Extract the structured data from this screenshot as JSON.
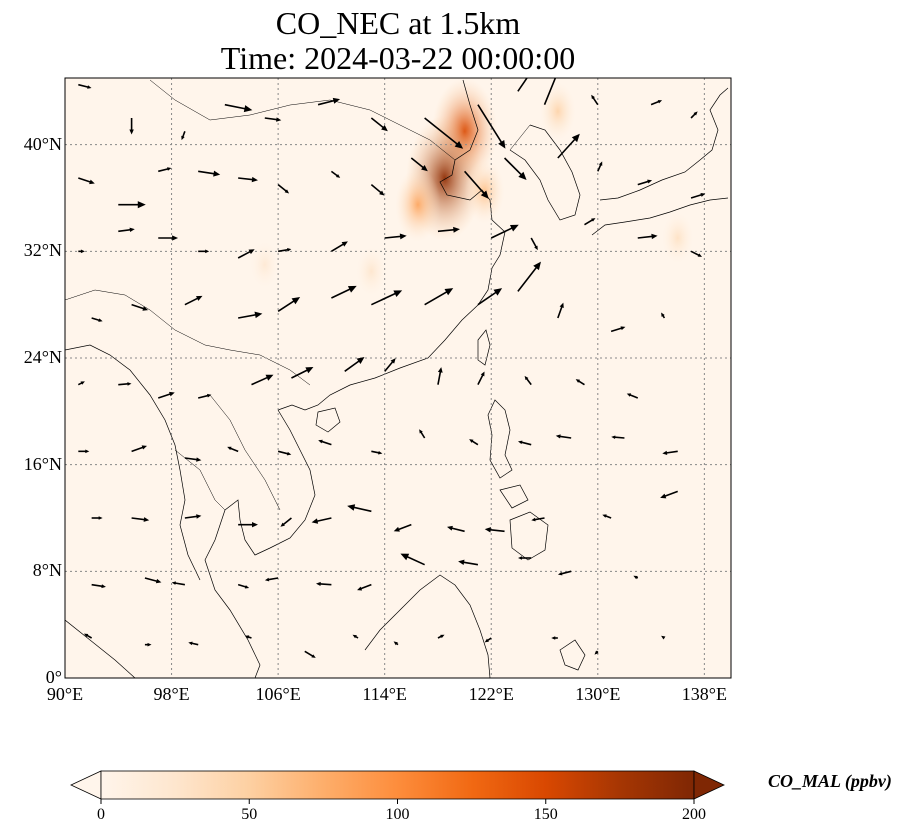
{
  "title": {
    "line1": "CO_NEC at 1.5km",
    "line2": "Time: 2024-03-22 00:00:00"
  },
  "map": {
    "extent": {
      "lon": [
        90,
        140
      ],
      "lat": [
        0,
        45
      ]
    },
    "lat_ticks": [
      {
        "value": 0,
        "label": "0°"
      },
      {
        "value": 8,
        "label": "8°N"
      },
      {
        "value": 16,
        "label": "16°N"
      },
      {
        "value": 24,
        "label": "24°N"
      },
      {
        "value": 32,
        "label": "32°N"
      },
      {
        "value": 40,
        "label": "40°N"
      }
    ],
    "lon_ticks": [
      {
        "value": 90,
        "label": "90°E"
      },
      {
        "value": 98,
        "label": "98°E"
      },
      {
        "value": 106,
        "label": "106°E"
      },
      {
        "value": 114,
        "label": "114°E"
      },
      {
        "value": 122,
        "label": "122°E"
      },
      {
        "value": 130,
        "label": "130°E"
      },
      {
        "value": 138,
        "label": "138°E"
      }
    ],
    "grid": true,
    "background_color": "#fff5eb",
    "plumes": [
      {
        "lon": 120.0,
        "lat": 41.0,
        "value": 150
      },
      {
        "lon": 118.5,
        "lat": 37.5,
        "value": 190
      },
      {
        "lon": 116.5,
        "lat": 35.5,
        "value": 80
      },
      {
        "lon": 121.5,
        "lat": 36.5,
        "value": 60
      },
      {
        "lon": 127.0,
        "lat": 42.5,
        "value": 45
      },
      {
        "lon": 136.0,
        "lat": 33.0,
        "value": 30
      },
      {
        "lon": 113.0,
        "lat": 30.5,
        "value": 25
      },
      {
        "lon": 105.0,
        "lat": 31.0,
        "value": 20
      }
    ],
    "wind_vectors": [
      [
        91,
        44.5,
        1.2,
        -0.3
      ],
      [
        95,
        42,
        0,
        -1.5
      ],
      [
        99,
        41,
        -0.3,
        -0.8
      ],
      [
        102,
        43,
        2.5,
        -0.5
      ],
      [
        105,
        42,
        1.5,
        -0.2
      ],
      [
        109,
        43,
        2,
        0.5
      ],
      [
        113,
        42,
        1.5,
        -1.2
      ],
      [
        117,
        42,
        3.5,
        -2.8
      ],
      [
        121,
        43,
        2.5,
        -4
      ],
      [
        124,
        44,
        1.5,
        2.2
      ],
      [
        126,
        43,
        1.3,
        3.2
      ],
      [
        130,
        43,
        -0.6,
        0.9
      ],
      [
        134,
        43,
        1,
        0.4
      ],
      [
        137,
        42,
        0.6,
        0.6
      ],
      [
        91,
        37.5,
        1.5,
        -0.5
      ],
      [
        94,
        35.5,
        2.5,
        0
      ],
      [
        97,
        38,
        1.2,
        0.3
      ],
      [
        100,
        38,
        2,
        -0.3
      ],
      [
        103,
        37.5,
        1.8,
        -0.2
      ],
      [
        106,
        37,
        1,
        -0.8
      ],
      [
        110,
        38,
        0.8,
        -0.6
      ],
      [
        113,
        37,
        1.2,
        -1
      ],
      [
        116,
        39,
        1.5,
        -1.2
      ],
      [
        120,
        38,
        2.2,
        -2.5
      ],
      [
        123,
        39,
        2,
        -2
      ],
      [
        127,
        39,
        2,
        2.2
      ],
      [
        130,
        38,
        0.4,
        0.9
      ],
      [
        133,
        37,
        1.3,
        0.4
      ],
      [
        137,
        36,
        1.3,
        0.4
      ],
      [
        91,
        32,
        0.6,
        0
      ],
      [
        94,
        33.5,
        1.5,
        0.2
      ],
      [
        97,
        33,
        1.8,
        0
      ],
      [
        100,
        32,
        1,
        0
      ],
      [
        103,
        31.5,
        1.5,
        0.8
      ],
      [
        106,
        32,
        1.2,
        0.2
      ],
      [
        110,
        32,
        1.5,
        0.9
      ],
      [
        114,
        33,
        2,
        0.2
      ],
      [
        118,
        33.5,
        2,
        0.2
      ],
      [
        122,
        33,
        2.5,
        1.2
      ],
      [
        125,
        33,
        0.6,
        -1.1
      ],
      [
        129,
        34,
        1,
        0.6
      ],
      [
        133,
        33,
        1.8,
        0.2
      ],
      [
        137,
        32,
        1,
        -0.5
      ],
      [
        92,
        27,
        1,
        -0.3
      ],
      [
        95,
        28,
        1.5,
        -0.5
      ],
      [
        99,
        28,
        1.6,
        0.8
      ],
      [
        103,
        27,
        2.2,
        0.4
      ],
      [
        106,
        27.5,
        2,
        1.3
      ],
      [
        110,
        28.5,
        2.3,
        1.1
      ],
      [
        113,
        28,
        2.8,
        1.3
      ],
      [
        117,
        28,
        2.6,
        1.5
      ],
      [
        121,
        28,
        2.2,
        1.5
      ],
      [
        124,
        29,
        2.1,
        2.7
      ],
      [
        127,
        27,
        0.5,
        1.4
      ],
      [
        131,
        26,
        1.3,
        0.4
      ],
      [
        135,
        27,
        -0.3,
        0.5
      ],
      [
        91,
        22,
        0.6,
        0.3
      ],
      [
        94,
        22,
        1.2,
        0.1
      ],
      [
        97,
        21,
        1.5,
        0.5
      ],
      [
        100,
        21,
        1.2,
        0.3
      ],
      [
        104,
        22,
        2,
        0.9
      ],
      [
        107,
        22.5,
        2,
        1
      ],
      [
        111,
        23,
        1.8,
        1.3
      ],
      [
        114,
        23,
        1,
        1.2
      ],
      [
        118,
        22,
        0.3,
        1.6
      ],
      [
        121,
        22,
        0.6,
        1.2
      ],
      [
        125,
        22,
        -0.6,
        0.8
      ],
      [
        129,
        22,
        -0.8,
        0.5
      ],
      [
        133,
        21,
        -1,
        0.4
      ],
      [
        91,
        17,
        1,
        0
      ],
      [
        95,
        17,
        1.4,
        0.5
      ],
      [
        99,
        16.5,
        1.5,
        -0.2
      ],
      [
        103,
        17,
        -1,
        0.4
      ],
      [
        106,
        17,
        1.2,
        -0.3
      ],
      [
        110,
        17.5,
        -1.2,
        0.4
      ],
      [
        113,
        17,
        1,
        -0.2
      ],
      [
        117,
        18,
        -0.5,
        0.8
      ],
      [
        121,
        17.5,
        -0.8,
        0.5
      ],
      [
        125,
        17.5,
        -1.2,
        0.3
      ],
      [
        128,
        18,
        -1.4,
        0.2
      ],
      [
        132,
        18,
        -1.2,
        0.1
      ],
      [
        136,
        17,
        -1.4,
        -0.2
      ],
      [
        92,
        12,
        1,
        0
      ],
      [
        95,
        12,
        1.6,
        -0.2
      ],
      [
        99,
        12,
        1.5,
        0.2
      ],
      [
        103,
        11.5,
        1.8,
        0
      ],
      [
        107,
        12,
        -1,
        -0.8
      ],
      [
        110,
        12,
        -1.8,
        -0.4
      ],
      [
        113,
        12.5,
        -2.2,
        0.5
      ],
      [
        116,
        11.5,
        -1.6,
        -0.6
      ],
      [
        120,
        11,
        -1.6,
        0.4
      ],
      [
        123,
        11,
        -1.8,
        0.2
      ],
      [
        126,
        12,
        -1.2,
        -0.2
      ],
      [
        131,
        12,
        -0.8,
        0.3
      ],
      [
        136,
        14,
        -1.6,
        -0.6
      ],
      [
        92,
        7,
        1.3,
        -0.2
      ],
      [
        96,
        7.5,
        1.5,
        -0.4
      ],
      [
        99,
        7,
        -1.2,
        0.2
      ],
      [
        103,
        7,
        1,
        -0.3
      ],
      [
        106,
        7.5,
        -1.2,
        -0.2
      ],
      [
        110,
        7,
        -1.4,
        0.1
      ],
      [
        113,
        7,
        -1.3,
        -0.5
      ],
      [
        117,
        8.5,
        -2.2,
        1
      ],
      [
        121,
        8.5,
        -1.8,
        0.3
      ],
      [
        125,
        9,
        -1.2,
        0
      ],
      [
        128,
        8,
        -1.2,
        -0.3
      ],
      [
        133,
        7.5,
        -0.4,
        0.2
      ],
      [
        92,
        3,
        -0.7,
        0.4
      ],
      [
        96,
        2.5,
        0.6,
        0
      ],
      [
        100,
        2.5,
        -0.9,
        0.2
      ],
      [
        104,
        3,
        -0.6,
        0.2
      ],
      [
        108,
        2,
        1,
        -0.6
      ],
      [
        112,
        3,
        -0.5,
        0.3
      ],
      [
        115,
        2.5,
        -0.4,
        0.3
      ],
      [
        118,
        3,
        0.6,
        0.3
      ],
      [
        122,
        3,
        -0.6,
        -0.4
      ],
      [
        127,
        3,
        -0.6,
        0
      ],
      [
        130,
        2,
        -0.3,
        -0.3
      ],
      [
        135,
        3,
        -0.3,
        0.2
      ]
    ],
    "wind_vector_units": "degrees lon/lat"
  },
  "colorbar": {
    "label": "CO_MAL (ppbv)",
    "min": 0,
    "max": 200,
    "extend": "both",
    "colormap": [
      "#fff5eb",
      "#fee6ce",
      "#fdd0a2",
      "#fdae6b",
      "#fd8d3c",
      "#f16913",
      "#d94801",
      "#a63603",
      "#7f2704"
    ],
    "ticks": [
      {
        "value": 0,
        "label": "0"
      },
      {
        "value": 50,
        "label": "50"
      },
      {
        "value": 100,
        "label": "100"
      },
      {
        "value": 150,
        "label": "150"
      },
      {
        "value": 200,
        "label": "200"
      }
    ]
  }
}
